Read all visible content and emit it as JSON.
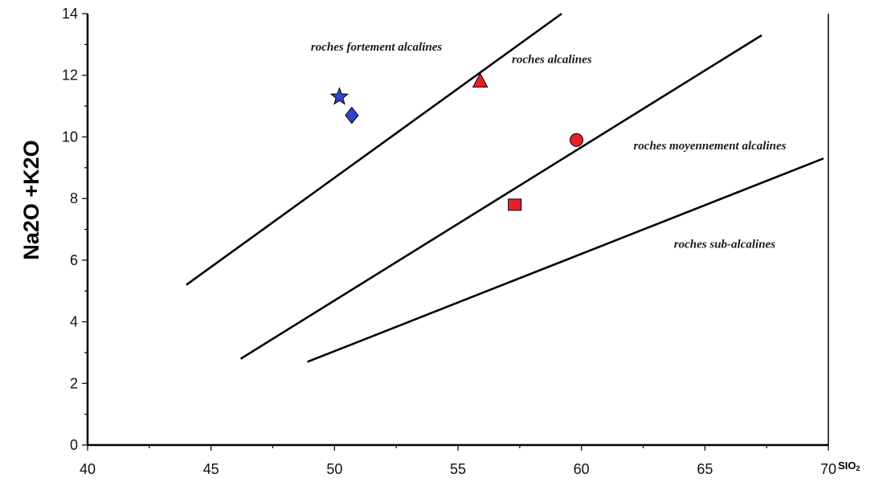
{
  "chart_data": {
    "type": "scatter",
    "xlabel": "SIO",
    "xlabel_sub": "2",
    "ylabel": "Na2O +K2O",
    "xlim": [
      40,
      70
    ],
    "ylim": [
      0,
      14
    ],
    "xticks": [
      40,
      45,
      50,
      55,
      60,
      65,
      70
    ],
    "yticks": [
      0,
      2,
      4,
      6,
      8,
      10,
      12,
      14
    ],
    "grid": false,
    "boundary_lines": [
      {
        "x": [
          44,
          59.2
        ],
        "y": [
          5.2,
          14
        ]
      },
      {
        "x": [
          46.2,
          67.3
        ],
        "y": [
          2.8,
          13.3
        ]
      },
      {
        "x": [
          48.9,
          69.8
        ],
        "y": [
          2.7,
          9.3
        ]
      }
    ],
    "region_labels": [
      {
        "text": "roches fortement alcalines",
        "x": 51.7,
        "y": 12.8
      },
      {
        "text": "roches alcalines",
        "x": 58.8,
        "y": 12.4
      },
      {
        "text": "roches moyennement alcalines",
        "x": 65.2,
        "y": 9.6
      },
      {
        "text": "roches sub-alcalines",
        "x": 65.8,
        "y": 6.4
      }
    ],
    "points": [
      {
        "x": 50.2,
        "y": 11.3,
        "marker": "star",
        "color": "#3344cc"
      },
      {
        "x": 50.7,
        "y": 10.7,
        "marker": "diamond",
        "color": "#3344cc"
      },
      {
        "x": 55.9,
        "y": 11.8,
        "marker": "triangle",
        "color": "#e8202a"
      },
      {
        "x": 59.8,
        "y": 9.9,
        "marker": "circle",
        "color": "#e8202a"
      },
      {
        "x": 57.3,
        "y": 7.8,
        "marker": "square",
        "color": "#e8202a"
      }
    ]
  }
}
